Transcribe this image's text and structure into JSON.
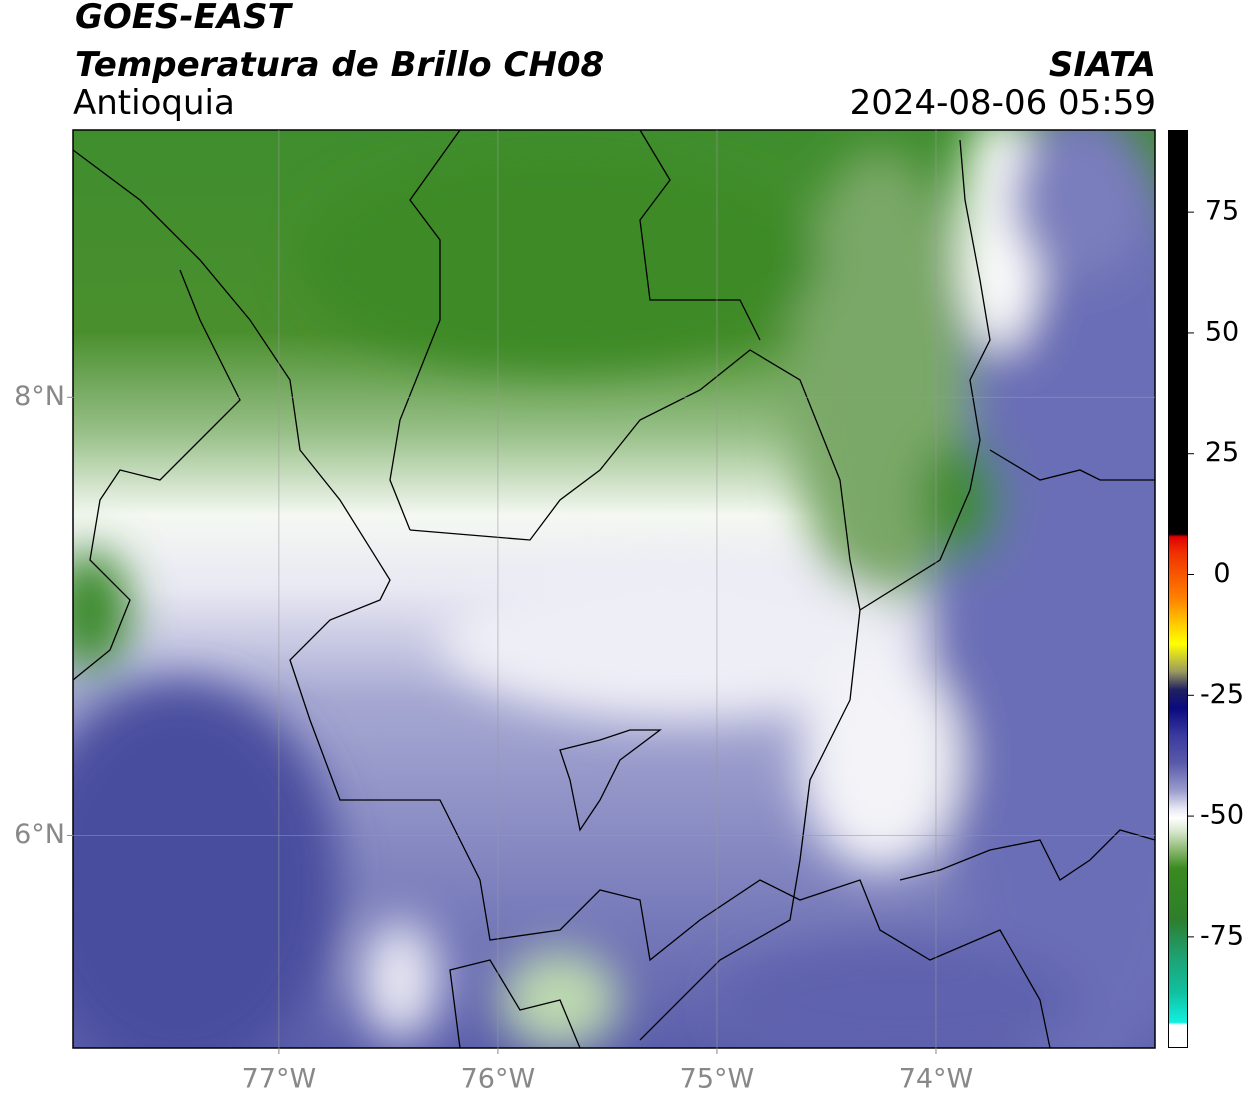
{
  "header": {
    "title": "GOES-EAST",
    "subtitle": "Temperatura de Brillo CH08",
    "region": "Antioquia",
    "source": "SIATA",
    "timestamp": "2024-08-06 05:59"
  },
  "chart_data": {
    "type": "map",
    "xlim": [
      -77.94,
      -73.0
    ],
    "ylim": [
      5.03,
      9.22
    ],
    "xticks": [
      {
        "value": -77,
        "label": "77°W"
      },
      {
        "value": -76,
        "label": "76°W"
      },
      {
        "value": -75,
        "label": "75°W"
      },
      {
        "value": -74,
        "label": "74°W"
      }
    ],
    "yticks": [
      {
        "value": 8,
        "label": "8°N"
      },
      {
        "value": 6,
        "label": "6°N"
      }
    ],
    "grid": true,
    "colorbar": {
      "ylim": [
        -98,
        92
      ],
      "yticks": [
        75,
        50,
        25,
        0,
        -25,
        -50,
        -75
      ]
    }
  }
}
